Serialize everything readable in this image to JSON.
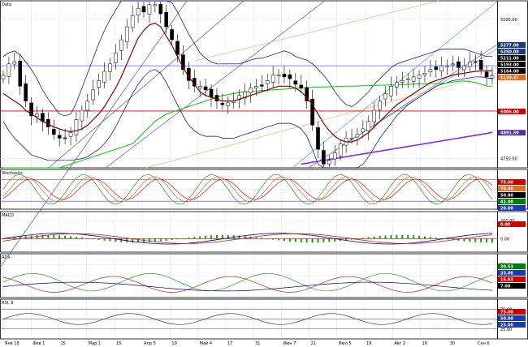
{
  "panels": {
    "main": {
      "label": "Data"
    },
    "stoch": {
      "label": "Stochastic"
    },
    "macd": {
      "label": "MACD"
    },
    "adx": {
      "label": "ADX"
    },
    "rsi": {
      "label": "RSI, 9"
    }
  },
  "colors": {
    "candle": "#000000",
    "sma": "#8b0000",
    "bands": "#00008b",
    "green_ma": "#00cc00",
    "purple_ma": "#8a2be2",
    "channel_blue": "#5a5aa8",
    "channel_orange": "#f2b27a",
    "channel_teal": "#4fa8a8",
    "hline_red": "#d00000",
    "hline_blue": "#3a3aff",
    "grid": "#c8c8c8"
  },
  "tags": {
    "main": [
      {
        "text": "5277.00",
        "color": "#1a3a7a"
      },
      {
        "text": "5250.00",
        "color": "#1a3a7a"
      },
      {
        "text": "5211.00",
        "color": "#000000"
      },
      {
        "text": "5193.00",
        "color": "#000000"
      },
      {
        "text": "5164.00",
        "color": "#000000"
      },
      {
        "text": "5139.47",
        "color": "#e07020"
      },
      {
        "text": "5006.00",
        "color": "#d00000"
      },
      {
        "text": "4891.50",
        "color": "#5a2aa0"
      }
    ],
    "stoch": [
      {
        "text": "75.00",
        "color": "#d00000"
      },
      {
        "text": "70.00",
        "color": "#e07020"
      },
      {
        "text": "50.00",
        "color": "#000000"
      },
      {
        "text": "41.00",
        "color": "#008000"
      },
      {
        "text": "20.00",
        "color": "#1a3ab0"
      }
    ],
    "macd": [
      {
        "text": "0.00",
        "color": "#d00000"
      }
    ],
    "adx": [
      {
        "text": "30.53",
        "color": "#008000"
      },
      {
        "text": "25.00",
        "color": "#1a3ab0"
      },
      {
        "text": "15.83",
        "color": "#d00000"
      },
      {
        "text": "7.00",
        "color": "#000000"
      }
    ],
    "rsi": [
      {
        "text": "75.00",
        "color": "#d00000"
      },
      {
        "text": "50.00",
        "color": "#1a3ab0"
      },
      {
        "text": "25.00",
        "color": "#1a3ab0"
      }
    ]
  },
  "chart_data": {
    "type": "candlestick",
    "x_labels": [
      "Янв 18",
      "Фев 1",
      "15",
      "Мар 1",
      "15",
      "Апр 5",
      "19",
      "Май 4",
      "17",
      "31",
      "Июн 7",
      "21",
      "Июл 5",
      "19",
      "Авг 2",
      "16",
      "30",
      "Сен 6"
    ],
    "main": {
      "ticks": [
        "5500.00",
        "4750.00"
      ],
      "tick_values": [
        5500,
        4750
      ],
      "ylim": [
        4700,
        5600
      ],
      "close": [
        5200,
        5260,
        5270,
        5140,
        5060,
        4980,
        4990,
        4950,
        4920,
        4880,
        4860,
        4860,
        4890,
        4960,
        5010,
        5060,
        5120,
        5170,
        5220,
        5260,
        5320,
        5390,
        5460,
        5520,
        5560,
        5540,
        5580,
        5580,
        5530,
        5460,
        5390,
        5310,
        5230,
        5170,
        5140,
        5140,
        5120,
        5080,
        5060,
        5040,
        5050,
        5060,
        5090,
        5110,
        5130,
        5140,
        5140,
        5170,
        5200,
        5200,
        5190,
        5180,
        5150,
        5130,
        5060,
        4930,
        4800,
        4720,
        4740,
        4780,
        4830,
        4860,
        4860,
        4880,
        4910,
        4950,
        5010,
        5060,
        5100,
        5140,
        5160,
        5170,
        5180,
        5190,
        5200,
        5210,
        5230,
        5230,
        5250,
        5250,
        5260,
        5240,
        5250,
        5270,
        5270,
        5230,
        5190,
        5197
      ],
      "sma": [
        5100,
        5080,
        5060,
        5040,
        5010,
        4990,
        4970,
        4950,
        4935,
        4920,
        4910,
        4900,
        4895,
        4900,
        4910,
        4930,
        4960,
        4990,
        5030,
        5080,
        5130,
        5190,
        5260,
        5330,
        5400,
        5440,
        5470,
        5480,
        5460,
        5410,
        5360,
        5300,
        5240,
        5190,
        5150,
        5110,
        5090,
        5080,
        5070,
        5060,
        5060,
        5060,
        5070,
        5080,
        5090,
        5100,
        5110,
        5120,
        5130,
        5140,
        5140,
        5140,
        5130,
        5110,
        5080,
        5040,
        4990,
        4940,
        4900,
        4870,
        4850,
        4840,
        4840,
        4850,
        4870,
        4890,
        4920,
        4950,
        4980,
        5010,
        5040,
        5060,
        5080,
        5100,
        5120,
        5140,
        5160,
        5170,
        5180,
        5190,
        5200,
        5205,
        5210,
        5215,
        5220,
        5222,
        5223,
        5224
      ],
      "band_upper": [
        5300,
        5320,
        5330,
        5310,
        5270,
        5230,
        5180,
        5120,
        5070,
        5030,
        4990,
        4980,
        4990,
        5050,
        5130,
        5210,
        5290,
        5370,
        5440,
        5500,
        5550,
        5600,
        5650,
        5700,
        5720,
        5720,
        5720,
        5710,
        5680,
        5640,
        5590,
        5540,
        5480,
        5420,
        5370,
        5320,
        5290,
        5270,
        5260,
        5260,
        5260,
        5260,
        5260,
        5270,
        5280,
        5290,
        5290,
        5300,
        5310,
        5320,
        5330,
        5320,
        5300,
        5290,
        5280,
        5260,
        5230,
        5200,
        5160,
        5110,
        5070,
        5040,
        5030,
        5050,
        5080,
        5110,
        5150,
        5180,
        5210,
        5240,
        5260,
        5270,
        5280,
        5290,
        5300,
        5310,
        5320,
        5330,
        5340,
        5340,
        5340,
        5340,
        5340,
        5330,
        5320,
        5310,
        5300,
        5300
      ],
      "band_lower": [
        4950,
        4900,
        4860,
        4830,
        4800,
        4770,
        4760,
        4750,
        4740,
        4740,
        4740,
        4740,
        4740,
        4745,
        4750,
        4760,
        4780,
        4800,
        4830,
        4870,
        4920,
        4980,
        5040,
        5100,
        5150,
        5190,
        5220,
        5230,
        5210,
        5160,
        5100,
        5040,
        4980,
        4930,
        4900,
        4880,
        4870,
        4870,
        4870,
        4860,
        4860,
        4860,
        4870,
        4880,
        4890,
        4900,
        4910,
        4920,
        4930,
        4940,
        4940,
        4940,
        4930,
        4910,
        4870,
        4800,
        4720,
        4660,
        4620,
        4600,
        4600,
        4620,
        4650,
        4680,
        4720,
        4760,
        4810,
        4860,
        4900,
        4940,
        4980,
        5010,
        5040,
        5060,
        5080,
        5100,
        5120,
        5140,
        5150,
        5160,
        5170,
        5175,
        5180,
        5185,
        5190,
        5190,
        5185,
        5180
      ],
      "green_ma": [
        4600,
        4610,
        4620,
        4630,
        4640,
        4650,
        4660,
        4670,
        4680,
        4690,
        4700,
        4710,
        4720,
        4730,
        4740,
        4750,
        4760,
        4770,
        4780,
        4790,
        4800,
        4810,
        4820,
        4830,
        4860,
        4890,
        4920,
        4950,
        4970,
        4990,
        5000,
        5010,
        5020,
        5030,
        5040,
        5050,
        5060,
        5070,
        5080,
        5090,
        5095,
        5100,
        5105,
        5110,
        5112,
        5114,
        5116,
        5118,
        5120,
        5122,
        5124,
        5126,
        5128,
        5130,
        5132,
        5134,
        5135,
        5136,
        5137,
        5138,
        5139,
        5140,
        5140,
        5141,
        5142,
        5143,
        5144,
        5145,
        5146,
        5147,
        5148,
        5149,
        5150,
        5151,
        5152,
        5153,
        5154,
        5155,
        5156,
        5158,
        5162,
        5166,
        5168,
        5165,
        5160,
        5150,
        5141,
        5139.47
      ],
      "purple_start_index": 53,
      "purple_ma": [
        4720,
        4725,
        4730,
        4735,
        4740,
        4745,
        4750,
        4755,
        4760,
        4765,
        4770,
        4775,
        4780,
        4785,
        4790,
        4795,
        4800,
        4805,
        4810,
        4815,
        4820,
        4825,
        4830,
        4835,
        4840,
        4845,
        4850,
        4855,
        4860,
        4865,
        4870,
        4875,
        4880,
        4885,
        4891.5
      ],
      "hline_red": 5006,
      "hline_blue": 5250
    },
    "stoch": {
      "ticks": [
        "50.00"
      ],
      "tick_values": [
        50
      ],
      "ylim": [
        0,
        100
      ],
      "levels": [
        75,
        20
      ]
    },
    "macd": {
      "ticks": [
        "200.00",
        "0.00"
      ],
      "tick_values": [
        200,
        0
      ],
      "ylim": [
        -150,
        300
      ]
    },
    "adx": {
      "ticks": [
        "75.00",
        "50.00"
      ],
      "tick_values": [
        75,
        50
      ],
      "ylim": [
        0,
        100
      ]
    },
    "rsi": {
      "ticks": [
        "75.00",
        "50.00",
        "25.00"
      ],
      "tick_values": [
        75,
        50,
        25
      ],
      "ylim": [
        0,
        100
      ],
      "levels": [
        75,
        50,
        25
      ]
    }
  }
}
